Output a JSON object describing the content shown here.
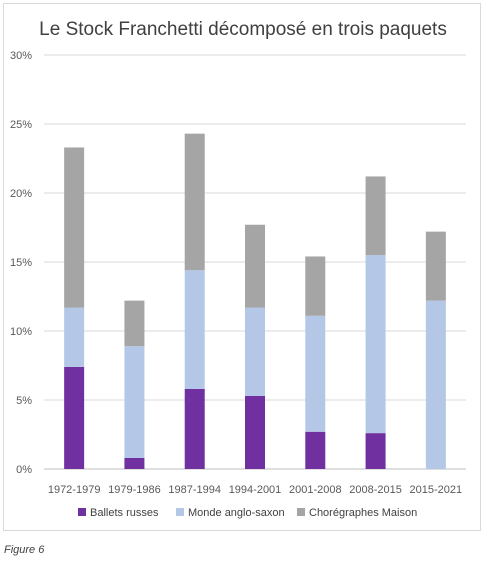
{
  "caption": "Figure 6",
  "chart_data": {
    "type": "bar",
    "stacked": true,
    "title": "Le Stock Franchetti décomposé en trois paquets",
    "categories": [
      "1972-1979",
      "1979-1986",
      "1987-1994",
      "1994-2001",
      "2001-2008",
      "2008-2015",
      "2015-2021"
    ],
    "series": [
      {
        "name": "Ballets russes",
        "color": "#7030a0",
        "values": [
          7.4,
          0.8,
          5.8,
          5.3,
          2.7,
          2.6,
          0.0
        ]
      },
      {
        "name": "Monde anglo-saxon",
        "color": "#b4c7e7",
        "values": [
          4.3,
          8.1,
          8.6,
          6.4,
          8.4,
          12.9,
          12.2
        ]
      },
      {
        "name": "Chorégraphes Maison",
        "color": "#a5a5a5",
        "values": [
          11.6,
          3.3,
          9.9,
          6.0,
          4.3,
          5.7,
          5.0
        ]
      }
    ],
    "ylim": [
      0,
      30
    ],
    "yticks": [
      "0%",
      "5%",
      "10%",
      "15%",
      "20%",
      "25%",
      "30%"
    ],
    "grid": true,
    "legend_position": "bottom"
  }
}
